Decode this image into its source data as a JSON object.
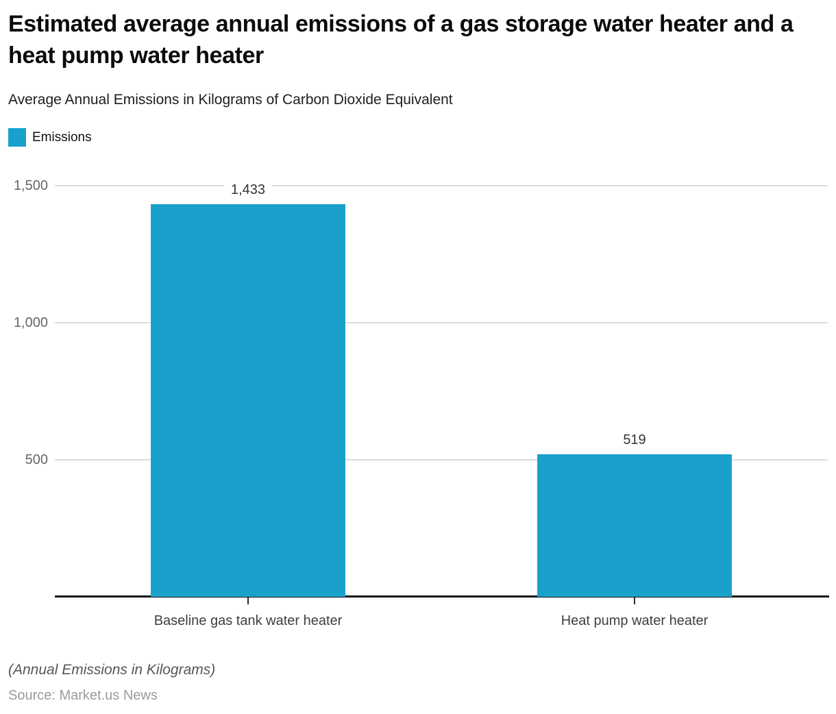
{
  "chart_data": {
    "type": "bar",
    "title": "Estimated average annual emissions of a gas storage water heater and a heat pump water heater",
    "subtitle": "Average Annual Emissions in Kilograms of Carbon Dioxide Equivalent",
    "legend": [
      {
        "label": "Emissions",
        "color": "#1aa1cb"
      }
    ],
    "categories": [
      "Baseline gas tank water heater",
      "Heat pump water heater"
    ],
    "values": [
      1433,
      519
    ],
    "value_labels": [
      "1,433",
      "519"
    ],
    "bar_color": "#1aa1cb",
    "xlabel": "",
    "ylabel": "",
    "ylim": [
      0,
      1500
    ],
    "yticks": [
      500,
      1000,
      1500
    ],
    "ytick_labels": [
      "500",
      "1,000",
      "1,500"
    ],
    "grid": true,
    "legend_position": "top-left"
  },
  "footer": {
    "note": "(Annual Emissions in Kilograms)",
    "source": "Source: Market.us News"
  }
}
